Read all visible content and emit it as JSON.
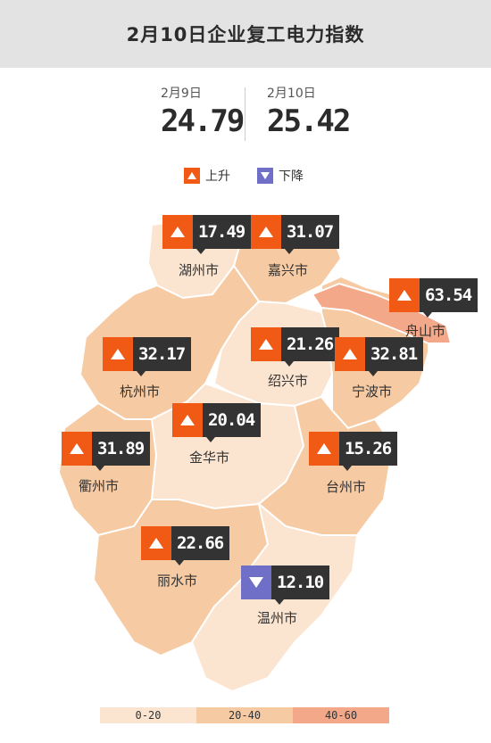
{
  "title": "2月10日企业复工电力指数",
  "comparison": {
    "prev": {
      "date": "2月9日",
      "value": "24.79"
    },
    "curr": {
      "date": "2月10日",
      "value": "25.42"
    }
  },
  "legend": {
    "up": "上升",
    "down": "下降"
  },
  "colors": {
    "up": "#f15a14",
    "down": "#6f6fc7",
    "band_0_20": "#fbe4d0",
    "band_20_40": "#f6caa2",
    "band_40_60": "#f3a889",
    "label_bg": "#333333"
  },
  "cities": [
    {
      "name": "湖州市",
      "value": "17.49",
      "trend": "up"
    },
    {
      "name": "嘉兴市",
      "value": "31.07",
      "trend": "up"
    },
    {
      "name": "舟山市",
      "value": "63.54",
      "trend": "up"
    },
    {
      "name": "杭州市",
      "value": "32.17",
      "trend": "up"
    },
    {
      "name": "绍兴市",
      "value": "21.26",
      "trend": "up"
    },
    {
      "name": "宁波市",
      "value": "32.81",
      "trend": "up"
    },
    {
      "name": "金华市",
      "value": "20.04",
      "trend": "up"
    },
    {
      "name": "衢州市",
      "value": "31.89",
      "trend": "up"
    },
    {
      "name": "台州市",
      "value": "15.26",
      "trend": "up"
    },
    {
      "name": "丽水市",
      "value": "22.66",
      "trend": "up"
    },
    {
      "name": "温州市",
      "value": "12.10",
      "trend": "down"
    }
  ],
  "scale": [
    "0-20",
    "20-40",
    "40-60"
  ]
}
